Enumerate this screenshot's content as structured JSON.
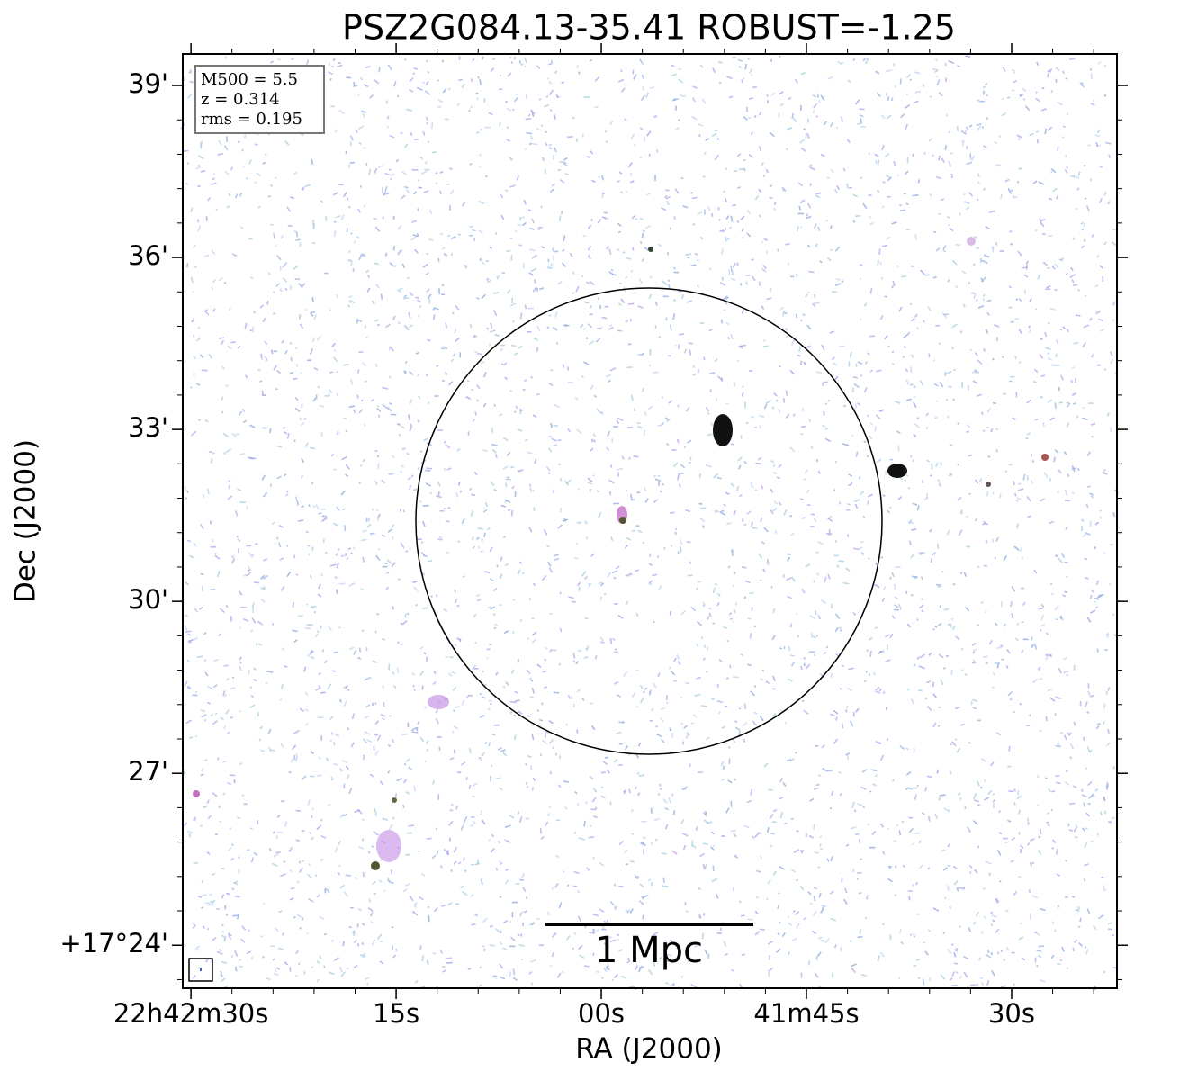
{
  "chart_data": {
    "type": "image",
    "title": "PSZ2G084.13-35.41 ROBUST=-1.25",
    "xlabel": "RA (J2000)",
    "ylabel": "Dec (J2000)",
    "xlim": [
      90.6,
      22.3
    ],
    "xticks": [
      {
        "value": 90,
        "label": "22h42m30s"
      },
      {
        "value": 75,
        "label": "15s"
      },
      {
        "value": 60,
        "label": "00s"
      },
      {
        "value": 45,
        "label": "41m45s"
      },
      {
        "value": 30,
        "label": "30s"
      }
    ],
    "ylim": [
      23.25,
      39.55
    ],
    "yticks": [
      {
        "value": 24,
        "label": "+17°24'"
      },
      {
        "value": 27,
        "label": "27'"
      },
      {
        "value": 30,
        "label": "30'"
      },
      {
        "value": 33,
        "label": "33'"
      },
      {
        "value": 36,
        "label": "36'"
      },
      {
        "value": 39,
        "label": "39'"
      }
    ],
    "annotation": [
      "M500 = 5.5",
      "z = 0.314",
      "rms = 0.195"
    ],
    "scalebar_label": "1 Mpc"
  }
}
